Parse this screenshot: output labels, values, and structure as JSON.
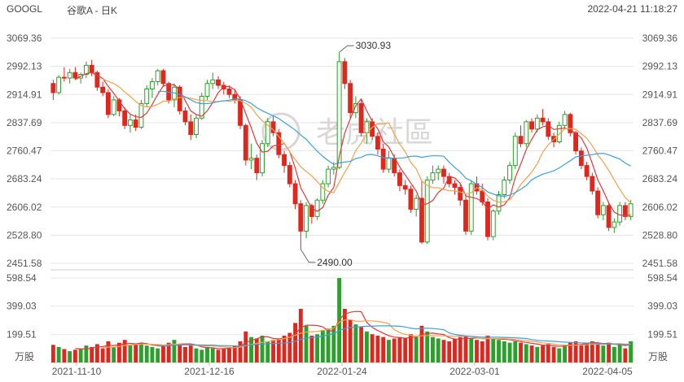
{
  "header": {
    "ticker": "GOOGL",
    "subtitle": "谷歌A - 日K",
    "timestamp": "2022-04-21 11:18:27"
  },
  "watermark": "老虎社區",
  "colors": {
    "up": "#2aa12a",
    "down": "#e0271d",
    "ma5": "#e03a3a",
    "ma10": "#f5a04a",
    "ma20": "#3aa0e0",
    "grid": "#e6e6e6"
  },
  "price_ticks": [
    "3069.36",
    "2992.13",
    "2914.91",
    "2837.69",
    "2760.47",
    "2683.24",
    "2606.02",
    "2528.80",
    "2451.58"
  ],
  "volume_ticks": [
    "598.54",
    "399.03",
    "199.51"
  ],
  "volume_unit": "万股",
  "date_labels": [
    "2021-11-10",
    "2021-12-16",
    "2022-01-24",
    "2022-03-01",
    "2022-04-05"
  ],
  "annotations": {
    "high": "3030.93",
    "low": "2490.00"
  },
  "chart_data": {
    "type": "candlestick",
    "title": "谷歌A - 日K",
    "price_range": [
      2451.58,
      3069.36
    ],
    "volume_range": [
      0,
      598.54
    ],
    "series": [
      {
        "o": 2945,
        "h": 2955,
        "l": 2900,
        "c": 2920,
        "v": 125
      },
      {
        "o": 2920,
        "h": 2968,
        "l": 2915,
        "c": 2962,
        "v": 110
      },
      {
        "o": 2962,
        "h": 2990,
        "l": 2950,
        "c": 2960,
        "v": 95
      },
      {
        "o": 2960,
        "h": 2985,
        "l": 2945,
        "c": 2975,
        "v": 80
      },
      {
        "o": 2975,
        "h": 2990,
        "l": 2955,
        "c": 2960,
        "v": 90
      },
      {
        "o": 2960,
        "h": 2975,
        "l": 2945,
        "c": 2970,
        "v": 100
      },
      {
        "o": 2970,
        "h": 3005,
        "l": 2960,
        "c": 2995,
        "v": 120
      },
      {
        "o": 2995,
        "h": 3010,
        "l": 2965,
        "c": 2975,
        "v": 110
      },
      {
        "o": 2975,
        "h": 2980,
        "l": 2925,
        "c": 2935,
        "v": 130
      },
      {
        "o": 2935,
        "h": 2950,
        "l": 2910,
        "c": 2920,
        "v": 100
      },
      {
        "o": 2920,
        "h": 2930,
        "l": 2850,
        "c": 2860,
        "v": 150
      },
      {
        "o": 2860,
        "h": 2910,
        "l": 2855,
        "c": 2900,
        "v": 110
      },
      {
        "o": 2900,
        "h": 2905,
        "l": 2855,
        "c": 2870,
        "v": 140
      },
      {
        "o": 2870,
        "h": 2880,
        "l": 2820,
        "c": 2830,
        "v": 160
      },
      {
        "o": 2830,
        "h": 2860,
        "l": 2810,
        "c": 2845,
        "v": 120
      },
      {
        "o": 2845,
        "h": 2860,
        "l": 2815,
        "c": 2825,
        "v": 130
      },
      {
        "o": 2825,
        "h": 2900,
        "l": 2820,
        "c": 2890,
        "v": 140
      },
      {
        "o": 2890,
        "h": 2940,
        "l": 2880,
        "c": 2930,
        "v": 120
      },
      {
        "o": 2930,
        "h": 2960,
        "l": 2905,
        "c": 2950,
        "v": 110
      },
      {
        "o": 2950,
        "h": 2985,
        "l": 2940,
        "c": 2980,
        "v": 100
      },
      {
        "o": 2980,
        "h": 2985,
        "l": 2935,
        "c": 2945,
        "v": 120
      },
      {
        "o": 2945,
        "h": 2950,
        "l": 2890,
        "c": 2900,
        "v": 140
      },
      {
        "o": 2900,
        "h": 2945,
        "l": 2880,
        "c": 2935,
        "v": 160
      },
      {
        "o": 2935,
        "h": 2940,
        "l": 2860,
        "c": 2870,
        "v": 130
      },
      {
        "o": 2870,
        "h": 2880,
        "l": 2830,
        "c": 2840,
        "v": 110
      },
      {
        "o": 2840,
        "h": 2860,
        "l": 2790,
        "c": 2805,
        "v": 120
      },
      {
        "o": 2805,
        "h": 2860,
        "l": 2795,
        "c": 2850,
        "v": 100
      },
      {
        "o": 2850,
        "h": 2920,
        "l": 2845,
        "c": 2910,
        "v": 90
      },
      {
        "o": 2910,
        "h": 2955,
        "l": 2900,
        "c": 2945,
        "v": 110
      },
      {
        "o": 2945,
        "h": 2975,
        "l": 2930,
        "c": 2955,
        "v": 100
      },
      {
        "o": 2955,
        "h": 2965,
        "l": 2930,
        "c": 2940,
        "v": 90
      },
      {
        "o": 2940,
        "h": 2950,
        "l": 2915,
        "c": 2930,
        "v": 100
      },
      {
        "o": 2930,
        "h": 2940,
        "l": 2905,
        "c": 2915,
        "v": 110
      },
      {
        "o": 2915,
        "h": 2930,
        "l": 2890,
        "c": 2900,
        "v": 120
      },
      {
        "o": 2900,
        "h": 2910,
        "l": 2820,
        "c": 2830,
        "v": 150
      },
      {
        "o": 2830,
        "h": 2835,
        "l": 2720,
        "c": 2735,
        "v": 220
      },
      {
        "o": 2735,
        "h": 2780,
        "l": 2710,
        "c": 2740,
        "v": 180
      },
      {
        "o": 2740,
        "h": 2750,
        "l": 2680,
        "c": 2700,
        "v": 170
      },
      {
        "o": 2700,
        "h": 2790,
        "l": 2690,
        "c": 2780,
        "v": 190
      },
      {
        "o": 2780,
        "h": 2850,
        "l": 2770,
        "c": 2840,
        "v": 150
      },
      {
        "o": 2840,
        "h": 2855,
        "l": 2800,
        "c": 2810,
        "v": 160
      },
      {
        "o": 2810,
        "h": 2820,
        "l": 2740,
        "c": 2750,
        "v": 170
      },
      {
        "o": 2750,
        "h": 2760,
        "l": 2700,
        "c": 2720,
        "v": 190
      },
      {
        "o": 2720,
        "h": 2730,
        "l": 2660,
        "c": 2670,
        "v": 210
      },
      {
        "o": 2670,
        "h": 2680,
        "l": 2600,
        "c": 2615,
        "v": 280
      },
      {
        "o": 2615,
        "h": 2625,
        "l": 2490,
        "c": 2540,
        "v": 380
      },
      {
        "o": 2540,
        "h": 2620,
        "l": 2520,
        "c": 2610,
        "v": 260
      },
      {
        "o": 2610,
        "h": 2615,
        "l": 2560,
        "c": 2580,
        "v": 190
      },
      {
        "o": 2580,
        "h": 2630,
        "l": 2570,
        "c": 2625,
        "v": 200
      },
      {
        "o": 2625,
        "h": 2680,
        "l": 2615,
        "c": 2670,
        "v": 230
      },
      {
        "o": 2670,
        "h": 2720,
        "l": 2660,
        "c": 2710,
        "v": 240
      },
      {
        "o": 2710,
        "h": 2730,
        "l": 2695,
        "c": 2715,
        "v": 260
      },
      {
        "o": 2715,
        "h": 3030.93,
        "l": 2710,
        "c": 3005,
        "v": 598
      },
      {
        "o": 3005,
        "h": 3015,
        "l": 2930,
        "c": 2945,
        "v": 380
      },
      {
        "o": 2945,
        "h": 2955,
        "l": 2850,
        "c": 2865,
        "v": 300
      },
      {
        "o": 2865,
        "h": 2910,
        "l": 2850,
        "c": 2890,
        "v": 270
      },
      {
        "o": 2890,
        "h": 2900,
        "l": 2800,
        "c": 2810,
        "v": 250
      },
      {
        "o": 2810,
        "h": 2850,
        "l": 2780,
        "c": 2840,
        "v": 220
      },
      {
        "o": 2840,
        "h": 2850,
        "l": 2790,
        "c": 2800,
        "v": 200
      },
      {
        "o": 2800,
        "h": 2810,
        "l": 2750,
        "c": 2765,
        "v": 190
      },
      {
        "o": 2765,
        "h": 2780,
        "l": 2700,
        "c": 2710,
        "v": 180
      },
      {
        "o": 2710,
        "h": 2760,
        "l": 2700,
        "c": 2740,
        "v": 160
      },
      {
        "o": 2740,
        "h": 2750,
        "l": 2690,
        "c": 2700,
        "v": 170
      },
      {
        "o": 2700,
        "h": 2710,
        "l": 2650,
        "c": 2665,
        "v": 180
      },
      {
        "o": 2665,
        "h": 2680,
        "l": 2640,
        "c": 2655,
        "v": 170
      },
      {
        "o": 2655,
        "h": 2665,
        "l": 2590,
        "c": 2600,
        "v": 200
      },
      {
        "o": 2600,
        "h": 2640,
        "l": 2580,
        "c": 2630,
        "v": 180
      },
      {
        "o": 2630,
        "h": 2680,
        "l": 2505,
        "c": 2510,
        "v": 260
      },
      {
        "o": 2510,
        "h": 2690,
        "l": 2505,
        "c": 2680,
        "v": 220
      },
      {
        "o": 2680,
        "h": 2720,
        "l": 2670,
        "c": 2700,
        "v": 180
      },
      {
        "o": 2700,
        "h": 2720,
        "l": 2680,
        "c": 2710,
        "v": 170
      },
      {
        "o": 2710,
        "h": 2720,
        "l": 2670,
        "c": 2690,
        "v": 160
      },
      {
        "o": 2690,
        "h": 2700,
        "l": 2660,
        "c": 2670,
        "v": 150
      },
      {
        "o": 2670,
        "h": 2680,
        "l": 2640,
        "c": 2660,
        "v": 170
      },
      {
        "o": 2660,
        "h": 2670,
        "l": 2610,
        "c": 2625,
        "v": 180
      },
      {
        "o": 2625,
        "h": 2640,
        "l": 2530,
        "c": 2540,
        "v": 190
      },
      {
        "o": 2540,
        "h": 2680,
        "l": 2530,
        "c": 2670,
        "v": 170
      },
      {
        "o": 2670,
        "h": 2690,
        "l": 2640,
        "c": 2650,
        "v": 160
      },
      {
        "o": 2650,
        "h": 2670,
        "l": 2610,
        "c": 2620,
        "v": 150
      },
      {
        "o": 2620,
        "h": 2630,
        "l": 2515,
        "c": 2525,
        "v": 190
      },
      {
        "o": 2525,
        "h": 2600,
        "l": 2515,
        "c": 2595,
        "v": 170
      },
      {
        "o": 2595,
        "h": 2650,
        "l": 2585,
        "c": 2640,
        "v": 160
      },
      {
        "o": 2640,
        "h": 2690,
        "l": 2630,
        "c": 2680,
        "v": 150
      },
      {
        "o": 2680,
        "h": 2730,
        "l": 2670,
        "c": 2720,
        "v": 140
      },
      {
        "o": 2720,
        "h": 2810,
        "l": 2710,
        "c": 2800,
        "v": 150
      },
      {
        "o": 2800,
        "h": 2830,
        "l": 2770,
        "c": 2780,
        "v": 140
      },
      {
        "o": 2780,
        "h": 2845,
        "l": 2770,
        "c": 2840,
        "v": 130
      },
      {
        "o": 2840,
        "h": 2850,
        "l": 2810,
        "c": 2820,
        "v": 120
      },
      {
        "o": 2820,
        "h": 2860,
        "l": 2810,
        "c": 2850,
        "v": 110
      },
      {
        "o": 2850,
        "h": 2875,
        "l": 2830,
        "c": 2840,
        "v": 120
      },
      {
        "o": 2840,
        "h": 2850,
        "l": 2790,
        "c": 2800,
        "v": 130
      },
      {
        "o": 2800,
        "h": 2810,
        "l": 2770,
        "c": 2785,
        "v": 110
      },
      {
        "o": 2785,
        "h": 2840,
        "l": 2780,
        "c": 2830,
        "v": 100
      },
      {
        "o": 2830,
        "h": 2870,
        "l": 2820,
        "c": 2860,
        "v": 120
      },
      {
        "o": 2860,
        "h": 2865,
        "l": 2800,
        "c": 2810,
        "v": 140
      },
      {
        "o": 2810,
        "h": 2815,
        "l": 2750,
        "c": 2760,
        "v": 150
      },
      {
        "o": 2760,
        "h": 2770,
        "l": 2710,
        "c": 2720,
        "v": 130
      },
      {
        "o": 2720,
        "h": 2730,
        "l": 2680,
        "c": 2690,
        "v": 140
      },
      {
        "o": 2690,
        "h": 2700,
        "l": 2640,
        "c": 2650,
        "v": 150
      },
      {
        "o": 2650,
        "h": 2660,
        "l": 2575,
        "c": 2585,
        "v": 130
      },
      {
        "o": 2585,
        "h": 2620,
        "l": 2570,
        "c": 2610,
        "v": 120
      },
      {
        "o": 2610,
        "h": 2620,
        "l": 2540,
        "c": 2550,
        "v": 140
      },
      {
        "o": 2550,
        "h": 2575,
        "l": 2535,
        "c": 2565,
        "v": 110
      },
      {
        "o": 2565,
        "h": 2620,
        "l": 2555,
        "c": 2610,
        "v": 130
      },
      {
        "o": 2610,
        "h": 2620,
        "l": 2570,
        "c": 2580,
        "v": 100
      },
      {
        "o": 2580,
        "h": 2625,
        "l": 2570,
        "c": 2615,
        "v": 150
      }
    ]
  }
}
